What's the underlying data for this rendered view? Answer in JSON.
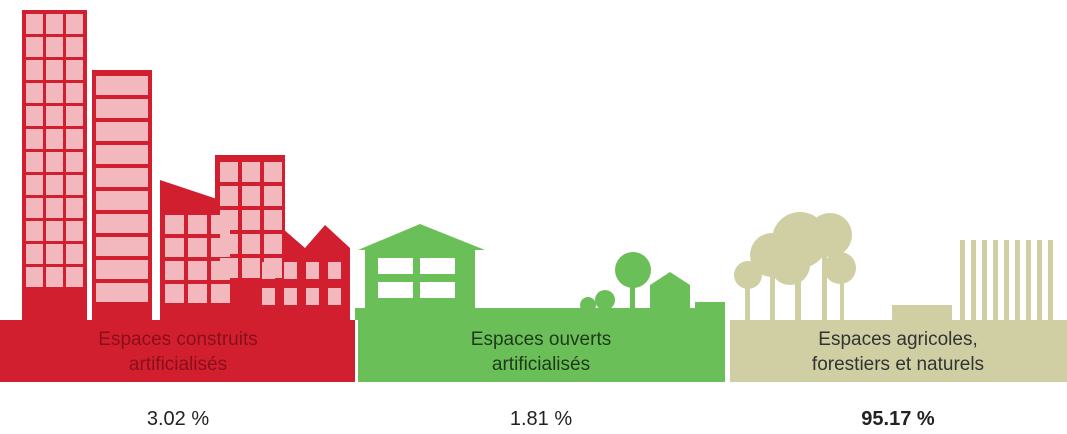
{
  "panels": [
    {
      "label": [
        "Espaces construits",
        "artificialisés"
      ],
      "value": "3.02 %"
    },
    {
      "label": [
        "Espaces ouverts",
        "artificialisés"
      ],
      "value": "1.81 %"
    },
    {
      "label": [
        "Espaces agricoles,",
        "forestiers et naturels"
      ],
      "value": "95.17 %"
    }
  ]
}
